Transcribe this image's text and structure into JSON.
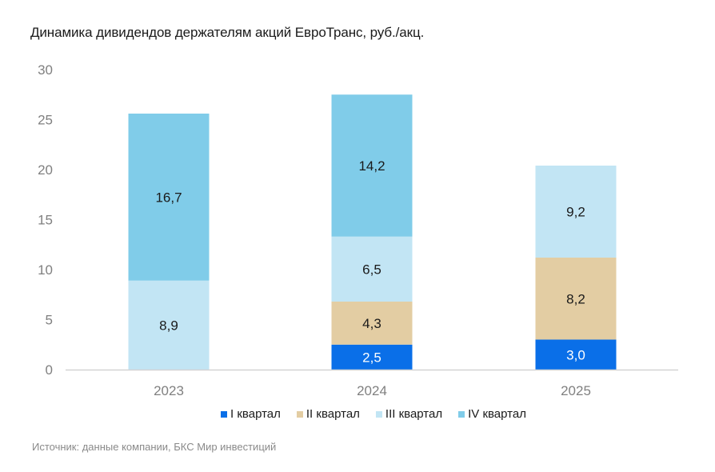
{
  "chart_data": {
    "type": "bar",
    "stacked": true,
    "title": "Динамика дивидендов держателям акций ЕвроТранс, руб./акц.",
    "xlabel": "",
    "ylabel": "",
    "ylim": [
      0,
      30
    ],
    "yticks": [
      0,
      5,
      10,
      15,
      20,
      25,
      30
    ],
    "grid": false,
    "legend_position": "bottom",
    "categories": [
      "2023",
      "2024",
      "2025"
    ],
    "series": [
      {
        "name": "I квартал",
        "color": "#0a6fe8",
        "label_color": "#ffffff",
        "values": [
          null,
          2.5,
          3.0
        ],
        "labels": [
          "",
          "2,5",
          "3,0"
        ]
      },
      {
        "name": "II квартал",
        "color": "#e3cda3",
        "label_color": "#1a1a1a",
        "values": [
          null,
          4.3,
          8.2
        ],
        "labels": [
          "",
          "4,3",
          "8,2"
        ]
      },
      {
        "name": "III квартал",
        "color": "#c2e5f4",
        "label_color": "#1a1a1a",
        "values": [
          8.9,
          6.5,
          9.2
        ],
        "labels": [
          "8,9",
          "6,5",
          "9,2"
        ]
      },
      {
        "name": "IV квартал",
        "color": "#80cce9",
        "label_color": "#1a1a1a",
        "values": [
          16.7,
          14.2,
          null
        ],
        "labels": [
          "16,7",
          "14,2",
          ""
        ]
      }
    ],
    "source": "Источник: данные компании, БКС Мир инвестиций"
  }
}
